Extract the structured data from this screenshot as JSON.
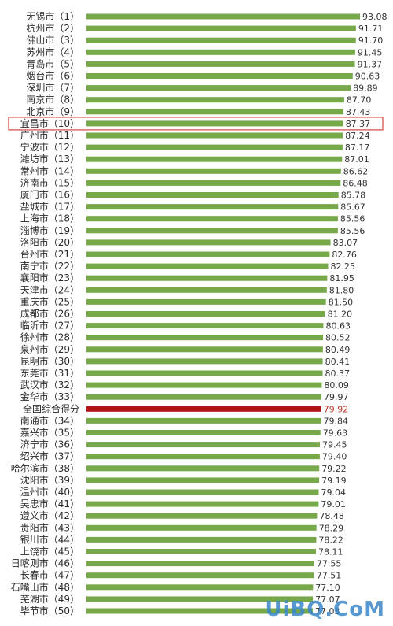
{
  "chart_data": {
    "type": "bar",
    "orientation": "horizontal",
    "categories": [
      "无锡市（1）",
      "杭州市（2）",
      "佛山市（3）",
      "苏州市（4）",
      "青岛市（5）",
      "烟台市（6）",
      "深圳市（7）",
      "南京市（8）",
      "北京市（9）",
      "宜昌市（10）",
      "广州市（11）",
      "宁波市（12）",
      "潍坊市（13）",
      "常州市（14）",
      "济南市（15）",
      "厦门市（16）",
      "盐城市（17）",
      "上海市（18）",
      "淄博市（19）",
      "洛阳市（20）",
      "台州市（21）",
      "南宁市（22）",
      "襄阳市（23）",
      "天津市（24）",
      "重庆市（25）",
      "成都市（26）",
      "临沂市（27）",
      "徐州市（28）",
      "泉州市（29）",
      "昆明市（30）",
      "东莞市（31）",
      "武汉市（32）",
      "金华市（33）",
      "全国综合得分",
      "南通市（34）",
      "嘉兴市（35）",
      "济宁市（36）",
      "绍兴市（37）",
      "哈尔滨市（38）",
      "沈阳市（39）",
      "温州市（40）",
      "吴忠市（41）",
      "遵义市（42）",
      "贵阳市（43）",
      "银川市（44）",
      "上饶市（45）",
      "日喀则市（46）",
      "长春市（47）",
      "石嘴山市（48）",
      "芜湖市（49）",
      "毕节市（50）"
    ],
    "values": [
      93.08,
      91.71,
      91.7,
      91.45,
      91.37,
      90.63,
      89.89,
      87.7,
      87.43,
      87.37,
      87.24,
      87.17,
      87.01,
      86.62,
      86.48,
      85.78,
      85.67,
      85.56,
      85.56,
      83.07,
      82.76,
      82.25,
      81.95,
      81.8,
      81.5,
      81.2,
      80.63,
      80.52,
      80.49,
      80.41,
      80.37,
      80.09,
      79.97,
      79.92,
      79.84,
      79.63,
      79.45,
      79.4,
      79.22,
      79.19,
      79.04,
      79.01,
      78.48,
      78.29,
      78.22,
      78.11,
      77.55,
      77.51,
      77.1,
      77.07,
      77.03
    ],
    "value_labels": [
      "93.08",
      "91.71",
      "91.70",
      "91.45",
      "91.37",
      "90.63",
      "89.89",
      "87.70",
      "87.43",
      "87.37",
      "87.24",
      "87.17",
      "87.01",
      "86.62",
      "86.48",
      "85.78",
      "85.67",
      "85.56",
      "85.56",
      "83.07",
      "82.76",
      "82.25",
      "81.95",
      "81.80",
      "81.50",
      "81.20",
      "80.63",
      "80.52",
      "80.49",
      "80.41",
      "80.37",
      "80.09",
      "79.97",
      "79.92",
      "79.84",
      "79.63",
      "79.45",
      "79.40",
      "79.22",
      "79.19",
      "79.04",
      "79.01",
      "78.48",
      "78.29",
      "78.22",
      "78.11",
      "77.55",
      "77.51",
      "77.10",
      "77.07",
      "77.03"
    ],
    "highlight_index": 33,
    "boxed_index": 9,
    "bar_color": "#77a94b",
    "highlight_color": "#b01318",
    "box_color": "#d9534f",
    "xlim": [
      0,
      93.08
    ],
    "grid": false,
    "title": "",
    "xlabel": "",
    "ylabel": ""
  },
  "watermark": "UiBQ.CoM"
}
